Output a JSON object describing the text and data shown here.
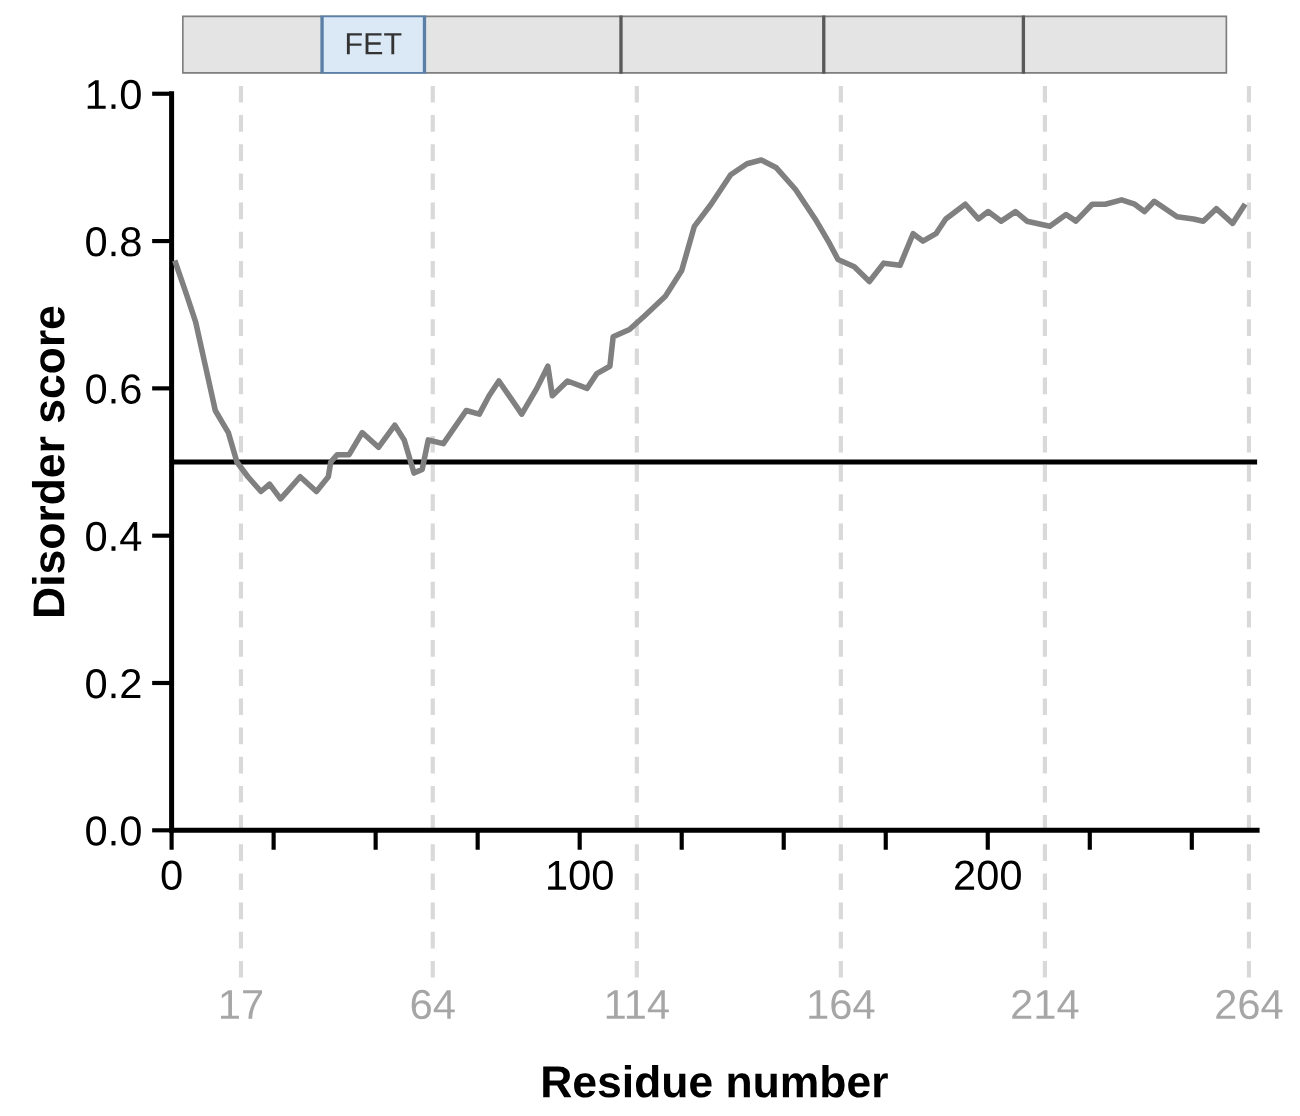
{
  "chart_data": {
    "type": "line",
    "xlabel": "Residue number",
    "ylabel": "Disorder score",
    "xlim": [
      0,
      266
    ],
    "ylim": [
      0,
      1
    ],
    "xticks": [
      0,
      {
        "value": 25,
        "label": null
      },
      {
        "value": 50,
        "label": null
      },
      {
        "value": 75,
        "label": null
      },
      100,
      {
        "value": 125,
        "label": null
      },
      {
        "value": 150,
        "label": null
      },
      {
        "value": 175,
        "label": null
      },
      200,
      {
        "value": 225,
        "label": null
      },
      {
        "value": 250,
        "label": null
      }
    ],
    "yticks": [
      {
        "value": 0,
        "label": "0.0"
      },
      {
        "value": 0.2,
        "label": "0.2"
      },
      {
        "value": 0.4,
        "label": "0.4"
      },
      {
        "value": 0.6,
        "label": "0.6"
      },
      {
        "value": 0.8,
        "label": "0.8"
      },
      {
        "value": 1,
        "label": "1.0"
      }
    ],
    "grid": false,
    "marker": "none",
    "line_style": "solid",
    "series": [
      {
        "color": "#808080",
        "x": [
          1,
          3.5,
          5.9,
          8.3,
          10.7,
          13.9,
          16,
          18.7,
          21.9,
          24,
          26.7,
          29.1,
          31.5,
          35.5,
          38.4,
          39,
          40.6,
          43.5,
          46.7,
          50.7,
          54.7,
          57,
          59.4,
          61.4,
          62.9,
          66.6,
          72.2,
          75.4,
          77.8,
          80.2,
          85.8,
          89.5,
          92.2,
          93.3,
          97,
          101.8,
          104.2,
          107.4,
          108.2,
          112.2,
          116.2,
          121,
          125,
          128.1,
          132.2,
          137,
          141,
          144.5,
          148.1,
          152.9,
          157.7,
          160.9,
          163.3,
          167.3,
          171,
          174.5,
          178.5,
          181.7,
          184.1,
          187.3,
          189.7,
          194.5,
          197.7,
          200.1,
          203.3,
          206.8,
          209.6,
          215.2,
          219.2,
          221.6,
          225.6,
          228.8,
          232.8,
          236,
          238.4,
          240.8,
          246.4,
          250.4,
          252.8,
          256,
          260,
          262.7
        ],
        "values": [
          0.77,
          0.73,
          0.69,
          0.63,
          0.57,
          0.54,
          0.5,
          0.48,
          0.46,
          0.47,
          0.45,
          0.465,
          0.48,
          0.46,
          0.48,
          0.5,
          0.51,
          0.51,
          0.54,
          0.52,
          0.55,
          0.53,
          0.485,
          0.49,
          0.53,
          0.525,
          0.57,
          0.565,
          0.59,
          0.61,
          0.565,
          0.6,
          0.63,
          0.59,
          0.61,
          0.6,
          0.62,
          0.63,
          0.67,
          0.68,
          0.7,
          0.725,
          0.76,
          0.82,
          0.85,
          0.89,
          0.905,
          0.91,
          0.9,
          0.87,
          0.83,
          0.8,
          0.775,
          0.765,
          0.745,
          0.77,
          0.767,
          0.81,
          0.8,
          0.81,
          0.83,
          0.85,
          0.83,
          0.84,
          0.827,
          0.84,
          0.827,
          0.82,
          0.836,
          0.827,
          0.85,
          0.85,
          0.856,
          0.85,
          0.84,
          0.854,
          0.833,
          0.83,
          0.827,
          0.844,
          0.824,
          0.847
        ]
      }
    ],
    "ref_lines": [
      {
        "axis": "y",
        "value": 0.5,
        "label": null,
        "color": "#000000",
        "line_style": "solid"
      },
      {
        "axis": "x",
        "value": 17,
        "label": "17",
        "color": "#d9d9d9",
        "line_style": "dashed"
      },
      {
        "axis": "x",
        "value": 64,
        "label": "64",
        "color": "#d9d9d9",
        "line_style": "dashed"
      },
      {
        "axis": "x",
        "value": 114,
        "label": "114",
        "color": "#d9d9d9",
        "line_style": "dashed"
      },
      {
        "axis": "x",
        "value": 164,
        "label": "164",
        "color": "#d9d9d9",
        "line_style": "dashed"
      },
      {
        "axis": "x",
        "value": 214,
        "label": "214",
        "color": "#d9d9d9",
        "line_style": "dashed"
      },
      {
        "axis": "x",
        "value": 264,
        "label": "264",
        "color": "#d9d9d9",
        "line_style": "dashed"
      }
    ],
    "annotations": [
      "FET"
    ]
  }
}
